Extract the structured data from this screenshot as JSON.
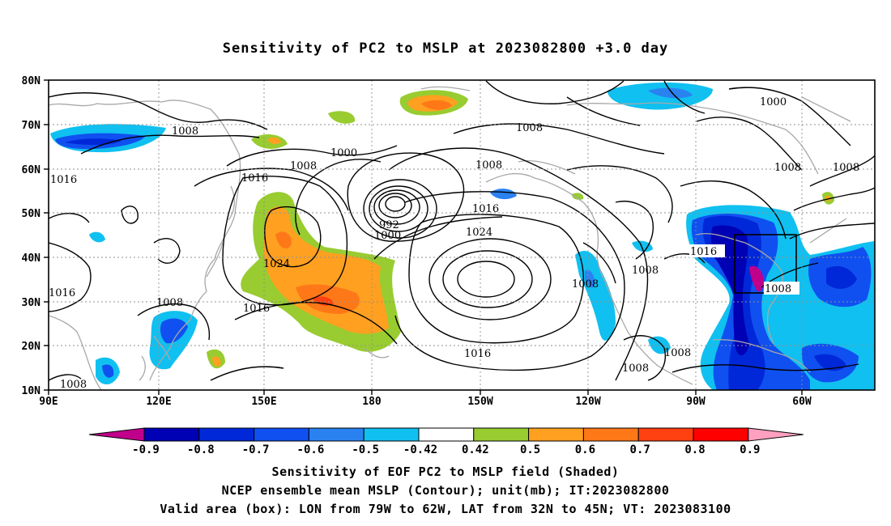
{
  "title": "Sensitivity of PC2 to MSLP at 2023082800 +3.0 day",
  "lat_labels": [
    "80N",
    "70N",
    "60N",
    "50N",
    "40N",
    "30N",
    "20N",
    "10N"
  ],
  "lon_labels": [
    "90E",
    "120E",
    "150E",
    "180",
    "150W",
    "120W",
    "90W",
    "60W"
  ],
  "colorbar": {
    "labels": [
      "-0.9",
      "-0.8",
      "-0.7",
      "-0.6",
      "-0.5",
      "-0.42",
      "0.42",
      "0.5",
      "0.6",
      "0.7",
      "0.8",
      "0.9"
    ],
    "colors": [
      "#c0008a",
      "#0000b4",
      "#0028d8",
      "#1050f0",
      "#2a82f0",
      "#10c0f0",
      "#ffffff",
      "#98cc30",
      "#ffa020",
      "#ff7818",
      "#ff4010",
      "#ff0000",
      "#ffa0c0"
    ]
  },
  "contour_labels": {
    "l1008a": "1008",
    "l1000a": "1000",
    "l1008b": "1008",
    "l1016a": "1016",
    "l1016b": "1016",
    "l992": "992",
    "l1000b": "1000",
    "l1008c": "1008",
    "l1008d": "1008",
    "l1000c": "1000",
    "l1016c": "1016",
    "l1024a": "1024",
    "l1024b": "1024",
    "l1016d": "1016",
    "l1008e": "1008",
    "l1016e": "1016",
    "l1008f": "1008",
    "l1016f": "1016",
    "l1008g": "1008",
    "l1008h": "1008",
    "l1008i": "1008",
    "l1008j": "1008",
    "l1008k": "1008",
    "l1016g": "1016",
    "l1008l": "1008"
  },
  "footer": {
    "line1": "Sensitivity of EOF PC2 to MSLP field (Shaded)",
    "line2": "NCEP ensemble mean MSLP (Contour); unit(mb); IT:2023082800",
    "line3": "Valid area (box): LON from 79W to 62W, LAT from 32N to 45N; VT: 2023083100"
  }
}
